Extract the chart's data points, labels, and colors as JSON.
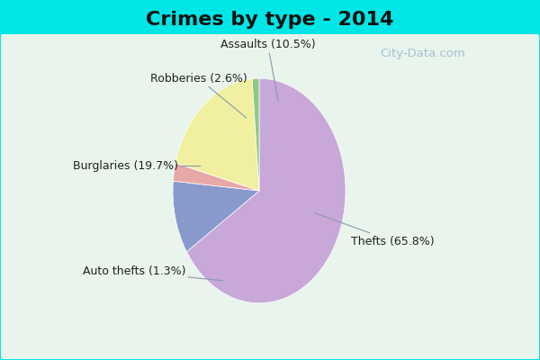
{
  "title": "Crimes by type - 2014",
  "slices": [
    {
      "label": "Thefts (65.8%)",
      "value": 65.8,
      "color": "#C8A8D8"
    },
    {
      "label": "Assaults (10.5%)",
      "value": 10.5,
      "color": "#8899CC"
    },
    {
      "label": "Robberies (2.6%)",
      "value": 2.6,
      "color": "#E8A8A8"
    },
    {
      "label": "Burglaries (19.7%)",
      "value": 19.7,
      "color": "#F0F0A0"
    },
    {
      "label": "Auto thefts (1.3%)",
      "value": 1.3,
      "color": "#90C880"
    }
  ],
  "background_color_outer": "#00E5E5",
  "background_color_inner_top": "#C8E8D8",
  "background_color_inner_bottom": "#E8F4EC",
  "title_fontsize": 16,
  "title_fontweight": "bold",
  "label_fontsize": 9,
  "watermark": "City-Data.com",
  "title_color": "#111111",
  "label_color": "#222222"
}
